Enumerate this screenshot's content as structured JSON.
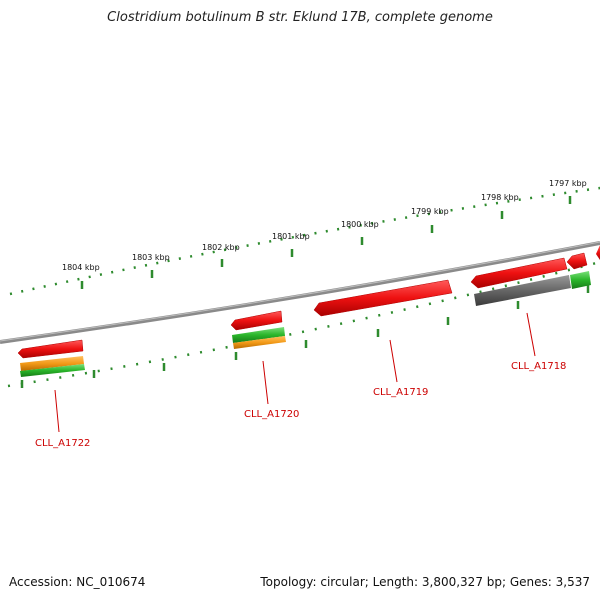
{
  "title": "Clostridium botulinum B str. Eklund 17B, complete genome",
  "footer": {
    "accession": "Accession: NC_010674",
    "topology": "Topology: circular; Length: 3,800,327 bp; Genes: 3,537"
  },
  "ruler_ticks": [
    "1804 kbp",
    "1803 kbp",
    "1802 kbp",
    "1801 kbp",
    "1800 kbp",
    "1799 kbp",
    "1798 kbp",
    "1797 kbp"
  ],
  "gene_labels": [
    "CLL_A1722",
    "CLL_A1720",
    "CLL_A1719",
    "CLL_A1718"
  ],
  "colors": {
    "cds_red": "#ee1111",
    "cds_green": "#2ab52a",
    "cds_orange": "#f39a18",
    "cds_gray": "#666666",
    "backbone": "#8a8a8a",
    "tick_green": "#2e8b2e",
    "label_red": "#cc0000"
  }
}
